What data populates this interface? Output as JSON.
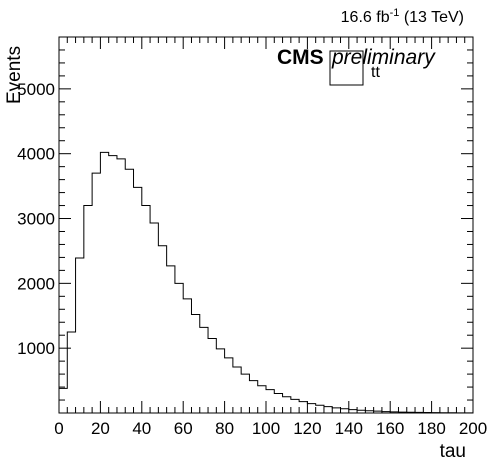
{
  "chart_data": {
    "type": "bar",
    "style": "step-histogram",
    "xlabel": "tau",
    "ylabel": "Events",
    "xlim": [
      0,
      200
    ],
    "ylim": [
      0,
      5800
    ],
    "x_ticks": [
      "0",
      "20",
      "40",
      "60",
      "80",
      "100",
      "120",
      "140",
      "160",
      "180",
      "200"
    ],
    "y_ticks": [
      "1000",
      "2000",
      "3000",
      "4000",
      "5000"
    ],
    "bin_width": 4,
    "bin_edges_start": 0,
    "values": [
      380,
      1250,
      2390,
      3200,
      3700,
      4020,
      3970,
      3920,
      3760,
      3480,
      3200,
      2930,
      2580,
      2270,
      2000,
      1760,
      1520,
      1320,
      1150,
      990,
      850,
      710,
      600,
      500,
      420,
      360,
      300,
      250,
      210,
      175,
      145,
      120,
      98,
      80,
      65,
      53,
      43,
      35,
      28,
      22,
      18,
      14,
      11,
      9,
      7,
      5,
      4,
      3,
      2,
      1
    ],
    "grid": false,
    "legend": {
      "placement": "top-right",
      "entries": [
        {
          "name": "tt",
          "style": "box"
        }
      ]
    },
    "annotations": {
      "lumi_value": "16.6 fb",
      "lumi_exp": "-1",
      "lumi_energy": " (13 TeV)",
      "cms_label": "CMS",
      "prelim_label": "preliminary"
    }
  }
}
